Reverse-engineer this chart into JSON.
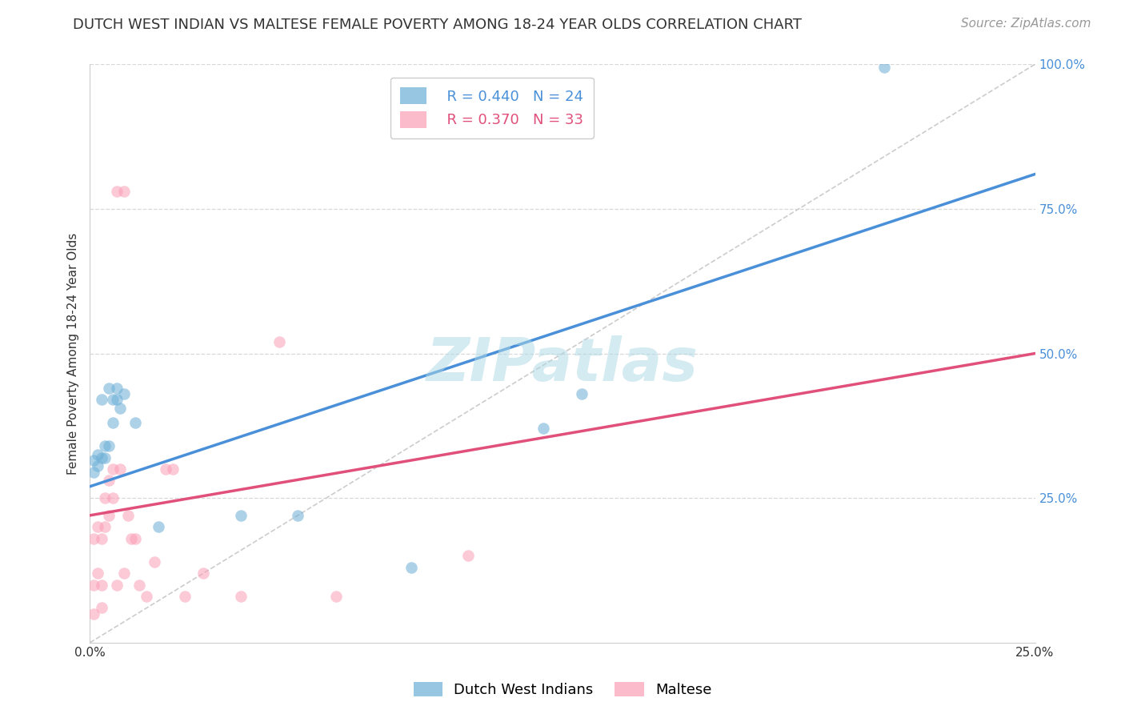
{
  "title": "DUTCH WEST INDIAN VS MALTESE FEMALE POVERTY AMONG 18-24 YEAR OLDS CORRELATION CHART",
  "source": "Source: ZipAtlas.com",
  "ylabel": "Female Poverty Among 18-24 Year Olds",
  "xlim": [
    0.0,
    0.25
  ],
  "ylim": [
    0.0,
    1.0
  ],
  "xticks": [
    0.0,
    0.05,
    0.1,
    0.15,
    0.2,
    0.25
  ],
  "xtick_labels": [
    "0.0%",
    "",
    "",
    "",
    "",
    "25.0%"
  ],
  "yticks_right": [
    0.0,
    0.25,
    0.5,
    0.75,
    1.0
  ],
  "ytick_labels_right": [
    "",
    "25.0%",
    "50.0%",
    "75.0%",
    "100.0%"
  ],
  "blue_color": "#6baed6",
  "pink_color": "#fb9eb5",
  "blue_line_color": "#4a90d9",
  "pink_line_color": "#e0507a",
  "blue_R": 0.44,
  "blue_N": 24,
  "pink_R": 0.37,
  "pink_N": 33,
  "blue_scatter_x": [
    0.001,
    0.001,
    0.002,
    0.002,
    0.003,
    0.004,
    0.004,
    0.005,
    0.006,
    0.006,
    0.007,
    0.007,
    0.008,
    0.009,
    0.012,
    0.018,
    0.04,
    0.055,
    0.085,
    0.12,
    0.13,
    0.21,
    0.003,
    0.005
  ],
  "blue_scatter_y": [
    0.295,
    0.315,
    0.305,
    0.325,
    0.32,
    0.32,
    0.34,
    0.34,
    0.38,
    0.42,
    0.42,
    0.44,
    0.405,
    0.43,
    0.38,
    0.2,
    0.22,
    0.22,
    0.13,
    0.37,
    0.43,
    0.995,
    0.42,
    0.44
  ],
  "pink_scatter_x": [
    0.001,
    0.001,
    0.001,
    0.002,
    0.002,
    0.003,
    0.003,
    0.003,
    0.004,
    0.004,
    0.005,
    0.005,
    0.006,
    0.006,
    0.007,
    0.007,
    0.008,
    0.009,
    0.009,
    0.01,
    0.011,
    0.012,
    0.013,
    0.015,
    0.017,
    0.02,
    0.022,
    0.025,
    0.03,
    0.04,
    0.05,
    0.065,
    0.1
  ],
  "pink_scatter_y": [
    0.05,
    0.1,
    0.18,
    0.12,
    0.2,
    0.06,
    0.1,
    0.18,
    0.2,
    0.25,
    0.22,
    0.28,
    0.25,
    0.3,
    0.1,
    0.78,
    0.3,
    0.12,
    0.78,
    0.22,
    0.18,
    0.18,
    0.1,
    0.08,
    0.14,
    0.3,
    0.3,
    0.08,
    0.12,
    0.08,
    0.52,
    0.08,
    0.15
  ],
  "blue_line_x": [
    0.0,
    0.25
  ],
  "blue_line_y": [
    0.27,
    0.81
  ],
  "pink_line_x": [
    0.0,
    0.25
  ],
  "pink_line_y": [
    0.22,
    0.5
  ],
  "ref_line_x": [
    0.0,
    0.25
  ],
  "ref_line_y": [
    0.0,
    1.0
  ],
  "watermark": "ZIPatlas",
  "watermark_color": "#add8e6",
  "background_color": "#ffffff",
  "grid_color": "#d8d8d8",
  "title_fontsize": 13,
  "axis_label_fontsize": 11,
  "tick_fontsize": 11,
  "legend_fontsize": 13,
  "source_fontsize": 11,
  "marker_size": 110
}
